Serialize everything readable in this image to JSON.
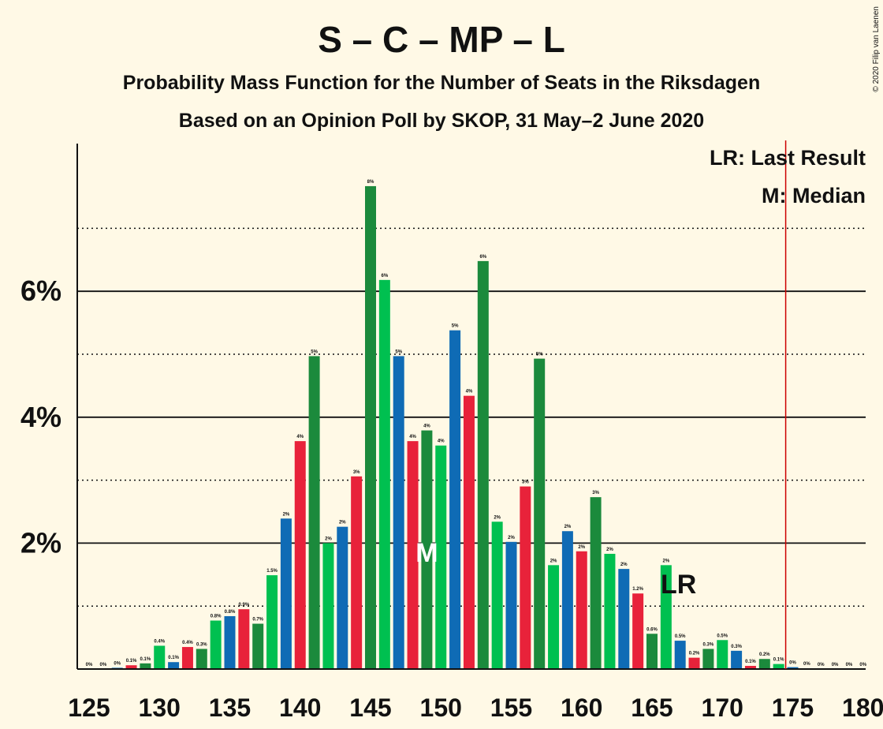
{
  "title": "S – C – MP – L",
  "subtitle_1": "Probability Mass Function for the Number of Seats in the Riksdagen",
  "subtitle_2": "Based on an Opinion Poll by SKOP, 31 May–2 June 2020",
  "copyright": "© 2020 Filip van Laenen",
  "legend": {
    "last_result": "LR: Last Result",
    "median": "M: Median"
  },
  "colors": {
    "background": "#fff9e6",
    "dark_green": "#1b8a3c",
    "light_green": "#00c050",
    "blue": "#0f6bb5",
    "red": "#e8223a",
    "majority_line": "#cc0000"
  },
  "chart_data": {
    "type": "bar",
    "x": [
      125,
      126,
      127,
      128,
      129,
      130,
      131,
      132,
      133,
      134,
      135,
      136,
      137,
      138,
      139,
      140,
      141,
      142,
      143,
      144,
      145,
      146,
      147,
      148,
      149,
      150,
      151,
      152,
      153,
      154,
      155,
      156,
      157,
      158,
      159,
      160,
      161,
      162,
      163,
      164,
      165,
      166,
      167,
      168,
      169,
      170,
      171,
      172,
      173,
      174,
      175,
      176,
      177,
      178,
      179,
      180
    ],
    "values": [
      0,
      0,
      0.02,
      0.06,
      0.09,
      0.37,
      0.11,
      0.35,
      0.32,
      0.77,
      0.84,
      0.95,
      0.72,
      1.49,
      2.39,
      3.62,
      4.97,
      2.0,
      2.26,
      3.06,
      7.67,
      6.18,
      4.97,
      3.62,
      3.79,
      3.55,
      5.38,
      4.34,
      6.48,
      2.34,
      2.02,
      2.9,
      4.93,
      1.65,
      2.19,
      1.87,
      2.73,
      1.83,
      1.59,
      1.2,
      0.56,
      1.65,
      0.45,
      0.18,
      0.32,
      0.46,
      0.29,
      0.05,
      0.16,
      0.08,
      0.03,
      0.01,
      0,
      0,
      0,
      0
    ],
    "value_labels": [
      "0%",
      "0%",
      "0%",
      "0.1%",
      "0.1%",
      "0.4%",
      "0.1%",
      "0.4%",
      "0.3%",
      "0.8%",
      "0.8%",
      "0.9%",
      "0.7%",
      "1.5%",
      "2%",
      "4%",
      "5%",
      "2%",
      "2%",
      "3%",
      "8%",
      "6%",
      "5%",
      "4%",
      "4%",
      "4%",
      "5%",
      "4%",
      "6%",
      "2%",
      "2%",
      "3%",
      "5%",
      "2%",
      "2%",
      "2%",
      "3%",
      "2%",
      "2%",
      "1.2%",
      "0.6%",
      "2%",
      "0.5%",
      "0.2%",
      "0.3%",
      "0.5%",
      "0.3%",
      "0.1%",
      "0.2%",
      "0.1%",
      "0%",
      "0%",
      "0%",
      "0%",
      "0%",
      "0%"
    ],
    "bar_colors": [
      "#1b8a3c",
      "#00c050",
      "#0f6bb5",
      "#e8223a",
      "#1b8a3c",
      "#00c050",
      "#0f6bb5",
      "#e8223a",
      "#1b8a3c",
      "#00c050",
      "#0f6bb5",
      "#e8223a",
      "#1b8a3c",
      "#00c050",
      "#0f6bb5",
      "#e8223a",
      "#1b8a3c",
      "#00c050",
      "#0f6bb5",
      "#e8223a",
      "#1b8a3c",
      "#00c050",
      "#0f6bb5",
      "#e8223a",
      "#1b8a3c",
      "#00c050",
      "#0f6bb5",
      "#e8223a",
      "#1b8a3c",
      "#00c050",
      "#0f6bb5",
      "#e8223a",
      "#1b8a3c",
      "#00c050",
      "#0f6bb5",
      "#e8223a",
      "#1b8a3c",
      "#00c050",
      "#0f6bb5",
      "#e8223a",
      "#1b8a3c",
      "#00c050",
      "#0f6bb5",
      "#e8223a",
      "#1b8a3c",
      "#00c050",
      "#0f6bb5",
      "#e8223a",
      "#1b8a3c",
      "#00c050",
      "#0f6bb5",
      "#e8223a",
      "#1b8a3c",
      "#00c050",
      "#0f6bb5",
      "#e8223a"
    ],
    "x_ticks": [
      125,
      130,
      135,
      140,
      145,
      150,
      155,
      160,
      165,
      170,
      175,
      180
    ],
    "y_ticks": [
      {
        "value": 2,
        "label": "2%"
      },
      {
        "value": 4,
        "label": "4%"
      },
      {
        "value": 6,
        "label": "6%"
      }
    ],
    "y_dotted_lines": [
      1,
      3,
      5,
      7
    ],
    "xlim": [
      124.5,
      180.5
    ],
    "ylim": [
      0,
      8.4
    ],
    "median": {
      "x": 149,
      "label": "M"
    },
    "last_result": {
      "x": 167,
      "label": "LR"
    },
    "majority_line_x": 174.5,
    "grid": true,
    "legend_position": "top-right"
  }
}
